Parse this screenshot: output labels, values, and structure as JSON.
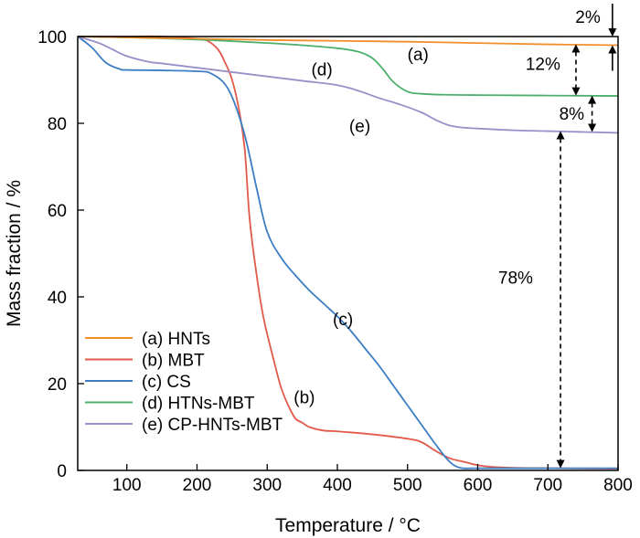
{
  "chart_data": {
    "type": "line",
    "xlabel": "Temperature / °C",
    "ylabel": "Mass fraction / %",
    "xlim": [
      30,
      800
    ],
    "ylim": [
      0,
      100
    ],
    "x_ticks": [
      100,
      200,
      300,
      400,
      500,
      600,
      700,
      800
    ],
    "y_ticks": [
      0,
      20,
      40,
      60,
      80,
      100
    ],
    "grid": false,
    "legend_placement": "bottom-left",
    "series": [
      {
        "name": "(a) HNTs",
        "color": "#F28E2B",
        "x": [
          30,
          100,
          200,
          300,
          400,
          500,
          600,
          700,
          800
        ],
        "y": [
          100,
          99.8,
          99.5,
          99.2,
          99.0,
          98.8,
          98.5,
          98.2,
          98.0
        ]
      },
      {
        "name": "(b) MBT",
        "color": "#E15A4A",
        "x": [
          30,
          100,
          150,
          200,
          215,
          230,
          240,
          250,
          260,
          268,
          275,
          285,
          295,
          310,
          320,
          330,
          340,
          350,
          360,
          380,
          400,
          450,
          500,
          520,
          540,
          560,
          580,
          600,
          620,
          650,
          700,
          800
        ],
        "y": [
          100,
          100,
          100,
          99.5,
          99,
          97,
          94,
          90,
          83,
          74,
          58,
          45,
          35,
          25,
          19,
          15,
          12,
          11,
          10,
          9.2,
          9,
          8.3,
          7.3,
          6.5,
          4.5,
          2.8,
          2,
          1.2,
          0.8,
          0.6,
          0.5,
          0.4
        ]
      },
      {
        "name": "(c) CS",
        "color": "#3C7DC4",
        "x": [
          30,
          50,
          70,
          90,
          100,
          150,
          200,
          220,
          240,
          255,
          270,
          285,
          300,
          320,
          340,
          360,
          380,
          400,
          420,
          440,
          460,
          480,
          500,
          520,
          540,
          560,
          575,
          590,
          600,
          700,
          800
        ],
        "y": [
          100,
          97.5,
          94,
          92.5,
          92.3,
          92.2,
          92,
          91.5,
          89,
          84,
          76,
          65,
          55,
          49,
          45,
          41.5,
          38.5,
          35.5,
          32,
          28,
          24,
          19.5,
          15,
          10.5,
          6,
          2,
          0.6,
          0.5,
          0.5,
          0.5,
          0.5
        ]
      },
      {
        "name": "(d) HTNs-MBT",
        "color": "#4CAF6C",
        "x": [
          30,
          100,
          200,
          300,
          350,
          400,
          430,
          450,
          465,
          480,
          500,
          520,
          550,
          600,
          700,
          800
        ],
        "y": [
          100,
          99.8,
          99.3,
          98.5,
          98.0,
          97.3,
          96.5,
          95,
          92.5,
          89.5,
          87.3,
          86.8,
          86.6,
          86.5,
          86.4,
          86.3
        ]
      },
      {
        "name": "(e) CP-HNTs-MBT",
        "color": "#9A8FC8",
        "x": [
          30,
          60,
          80,
          100,
          130,
          150,
          200,
          250,
          300,
          350,
          400,
          430,
          460,
          490,
          520,
          540,
          560,
          580,
          600,
          650,
          700,
          750,
          800
        ],
        "y": [
          100,
          98.5,
          97,
          95.5,
          94.2,
          93.8,
          92.8,
          91.8,
          90.8,
          89.8,
          88.8,
          87.5,
          85.8,
          84.3,
          82.5,
          80.8,
          79.5,
          79,
          78.8,
          78.4,
          78.2,
          78.0,
          77.8
        ]
      }
    ],
    "annotations": [
      {
        "text": "(a)",
        "x": 515,
        "y": 96
      },
      {
        "text": "(b)",
        "x": 353,
        "y": 17
      },
      {
        "text": "(c)",
        "x": 408,
        "y": 35
      },
      {
        "text": "(d)",
        "x": 378,
        "y": 92.5
      },
      {
        "text": "(e)",
        "x": 432,
        "y": 79.5
      },
      {
        "text": "2%",
        "x": 757,
        "y": 104.6
      },
      {
        "text": "12%",
        "x": 693,
        "y": 93.8
      },
      {
        "text": "8%",
        "x": 734,
        "y": 82.3
      },
      {
        "text": "78%",
        "x": 654,
        "y": 44.5
      }
    ],
    "gap_arrows": [
      {
        "label": "2%",
        "x": 792,
        "from": 100,
        "to": 98.0,
        "style": "solid"
      },
      {
        "label": "12%",
        "x": 740,
        "from": 98.2,
        "to": 86.4,
        "style": "dashed"
      },
      {
        "label": "8%",
        "x": 763,
        "from": 86.4,
        "to": 78.0,
        "style": "dashed"
      },
      {
        "label": "78%",
        "x": 718,
        "from": 78.2,
        "to": 0.5,
        "style": "dashed"
      }
    ]
  }
}
